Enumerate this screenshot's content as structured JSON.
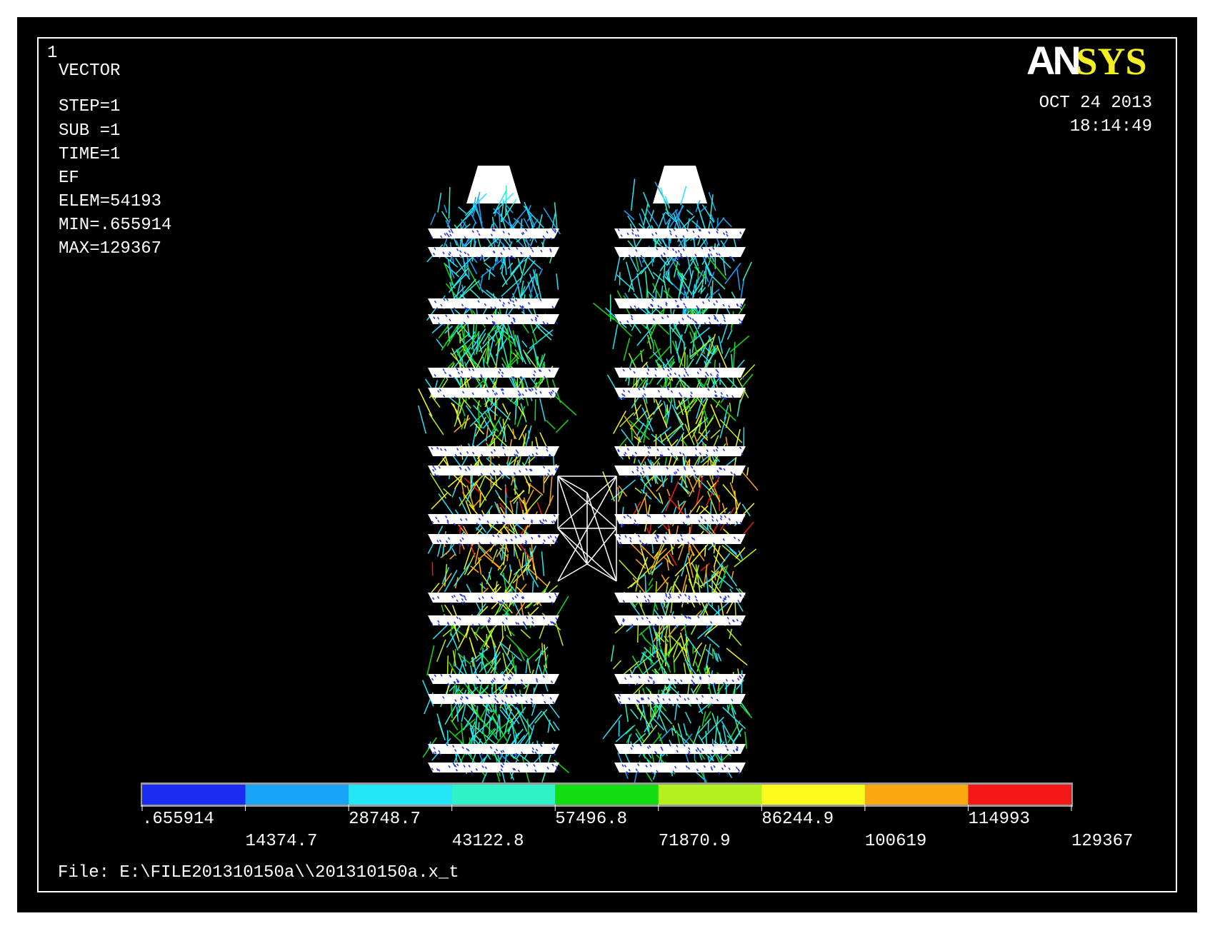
{
  "plot_number": "1",
  "header": {
    "lines": [
      "VECTOR",
      "STEP=1",
      "SUB =1",
      "TIME=1",
      "EF",
      "ELEM=54193",
      "MIN=.655914",
      "MAX=129367"
    ]
  },
  "logo": {
    "an": "AN",
    "sys": "SYS"
  },
  "timestamp": {
    "date": "OCT 24 2013",
    "time": "18:14:49"
  },
  "legend": {
    "colors": [
      "#1c2cf0",
      "#1aa4f8",
      "#22e6f6",
      "#2ef2c8",
      "#12dc12",
      "#b2f01e",
      "#fafa1e",
      "#fca810",
      "#f41818"
    ],
    "labels": [
      ".655914",
      "14374.7",
      "28748.7",
      "43122.8",
      "57496.8",
      "71870.9",
      "86244.9",
      "100619",
      "114993",
      "129367"
    ]
  },
  "file": "File: E:\\FILE201310150a\\\\201310150a.x_t"
}
